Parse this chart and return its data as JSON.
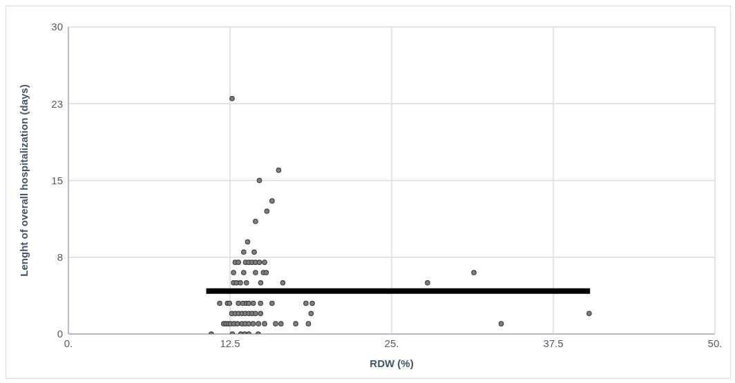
{
  "chart_data": {
    "type": "scatter",
    "xlabel": "RDW (%)",
    "ylabel": "Lenght of overall hospitalization (days)",
    "xlim": [
      0,
      50
    ],
    "xticks": [
      {
        "value": 0,
        "label": "0."
      },
      12.5,
      {
        "value": 25,
        "label": "25."
      },
      37.5,
      {
        "value": 50,
        "label": "50."
      }
    ],
    "ylim": [
      0,
      30
    ],
    "yticks": [
      0,
      {
        "value": 7.5,
        "label": "8"
      },
      15,
      {
        "value": 22.5,
        "label": "23"
      },
      30
    ],
    "grid": true,
    "series": [
      {
        "color": "#7f7f7f",
        "marker": "circle",
        "x": [
          12.66,
          16.26,
          14.77,
          15.75,
          15.35,
          14.47,
          13.86,
          13.56,
          14.37,
          12.9,
          13.15,
          13.7,
          13.95,
          14.2,
          14.47,
          14.77,
          15.17,
          12.77,
          13.56,
          14.47,
          15.08,
          15.3,
          12.77,
          13.0,
          13.3,
          13.77,
          14.87,
          16.58,
          27.77,
          31.36,
          11.7,
          12.3,
          12.46,
          13.15,
          13.5,
          13.77,
          13.95,
          14.3,
          14.86,
          15.75,
          18.37,
          18.86,
          12.63,
          12.9,
          13.15,
          13.42,
          13.68,
          13.95,
          14.2,
          14.47,
          14.86,
          18.77,
          40.27,
          12.01,
          12.19,
          12.37,
          12.54,
          12.8,
          13.07,
          13.42,
          13.68,
          13.95,
          14.29,
          14.7,
          15.17,
          16.02,
          16.44,
          17.58,
          18.56,
          33.47,
          11.05,
          12.68,
          13.33,
          13.63,
          13.95,
          14.68
        ],
        "values": [
          23,
          16,
          15,
          13,
          12,
          11,
          9,
          8,
          8,
          7,
          7,
          7,
          7,
          7,
          7,
          7,
          7,
          6,
          6,
          6,
          6,
          6,
          5,
          5,
          5,
          5,
          5,
          5,
          5,
          6,
          3,
          3,
          3,
          3,
          3,
          3,
          3,
          3,
          3,
          3,
          3,
          3,
          2,
          2,
          2,
          2,
          2,
          2,
          2,
          2,
          2,
          2,
          2,
          1,
          1,
          1,
          1,
          1,
          1,
          1,
          1,
          1,
          1,
          1,
          1,
          1,
          1,
          1,
          1,
          1,
          0,
          0,
          0,
          0,
          0,
          0
        ]
      },
      {
        "type": "line",
        "marker": "none",
        "color": "#000000",
        "x": [
          10.66,
          40.34
        ],
        "values": [
          4.2,
          4.2
        ]
      }
    ]
  }
}
